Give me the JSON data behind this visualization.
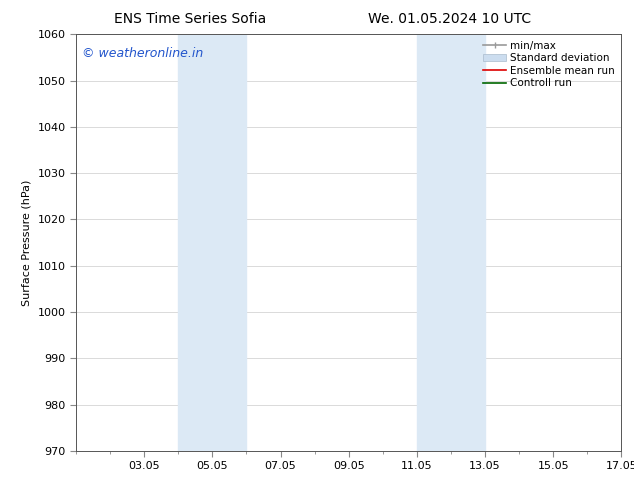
{
  "title_left": "ENS Time Series Sofia",
  "title_right": "We. 01.05.2024 10 UTC",
  "ylabel": "Surface Pressure (hPa)",
  "ylim": [
    970,
    1060
  ],
  "yticks": [
    970,
    980,
    990,
    1000,
    1010,
    1020,
    1030,
    1040,
    1050,
    1060
  ],
  "xlim": [
    1.0,
    17.0
  ],
  "xtick_labels": [
    "03.05",
    "05.05",
    "07.05",
    "09.05",
    "11.05",
    "13.05",
    "15.05",
    "17.05"
  ],
  "xtick_positions": [
    3,
    5,
    7,
    9,
    11,
    13,
    15,
    17
  ],
  "shaded_regions": [
    {
      "x_start": 4.0,
      "x_end": 4.5,
      "color": "#dce9f5"
    },
    {
      "x_start": 4.5,
      "x_end": 6.0,
      "color": "#dce9f5"
    },
    {
      "x_start": 11.0,
      "x_end": 11.5,
      "color": "#dce9f5"
    },
    {
      "x_start": 11.5,
      "x_end": 13.0,
      "color": "#dce9f5"
    }
  ],
  "watermark_text": "© weatheronline.in",
  "watermark_color": "#2255cc",
  "watermark_fontsize": 9,
  "legend_entries": [
    {
      "label": "min/max",
      "color": "#999999",
      "lw": 1.2
    },
    {
      "label": "Standard deviation",
      "color": "#ccddef",
      "lw": 8
    },
    {
      "label": "Ensemble mean run",
      "color": "#dd0000",
      "lw": 1.2
    },
    {
      "label": "Controll run",
      "color": "#006600",
      "lw": 1.2
    }
  ],
  "background_color": "#ffffff",
  "grid_color": "#cccccc",
  "title_fontsize": 10,
  "label_fontsize": 8,
  "tick_fontsize": 8,
  "legend_fontsize": 7.5
}
